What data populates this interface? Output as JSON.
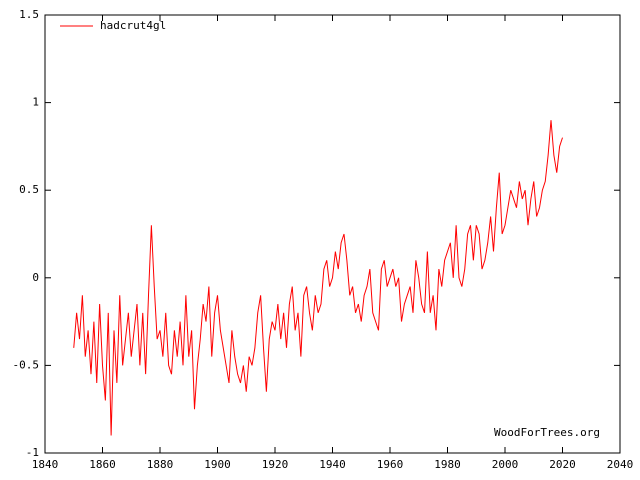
{
  "chart_data": {
    "type": "line",
    "annotation": "WoodForTrees.org",
    "x": [
      1850,
      1851,
      1852,
      1853,
      1854,
      1855,
      1856,
      1857,
      1858,
      1859,
      1860,
      1861,
      1862,
      1863,
      1864,
      1865,
      1866,
      1867,
      1868,
      1869,
      1870,
      1871,
      1872,
      1873,
      1874,
      1875,
      1876,
      1877,
      1878,
      1879,
      1880,
      1881,
      1882,
      1883,
      1884,
      1885,
      1886,
      1887,
      1888,
      1889,
      1890,
      1891,
      1892,
      1893,
      1894,
      1895,
      1896,
      1897,
      1898,
      1899,
      1900,
      1901,
      1902,
      1903,
      1904,
      1905,
      1906,
      1907,
      1908,
      1909,
      1910,
      1911,
      1912,
      1913,
      1914,
      1915,
      1916,
      1917,
      1918,
      1919,
      1920,
      1921,
      1922,
      1923,
      1924,
      1925,
      1926,
      1927,
      1928,
      1929,
      1930,
      1931,
      1932,
      1933,
      1934,
      1935,
      1936,
      1937,
      1938,
      1939,
      1940,
      1941,
      1942,
      1943,
      1944,
      1945,
      1946,
      1947,
      1948,
      1949,
      1950,
      1951,
      1952,
      1953,
      1954,
      1955,
      1956,
      1957,
      1958,
      1959,
      1960,
      1961,
      1962,
      1963,
      1964,
      1965,
      1966,
      1967,
      1968,
      1969,
      1970,
      1971,
      1972,
      1973,
      1974,
      1975,
      1976,
      1977,
      1978,
      1979,
      1980,
      1981,
      1982,
      1983,
      1984,
      1985,
      1986,
      1987,
      1988,
      1989,
      1990,
      1991,
      1992,
      1993,
      1994,
      1995,
      1996,
      1997,
      1998,
      1999,
      2000,
      2001,
      2002,
      2003,
      2004,
      2005,
      2006,
      2007,
      2008,
      2009,
      2010,
      2011,
      2012,
      2013,
      2014,
      2015,
      2016,
      2017,
      2018,
      2019,
      2020
    ],
    "series": [
      {
        "name": "hadcrut4gl",
        "color": "#ff0000",
        "values": [
          -0.4,
          -0.2,
          -0.35,
          -0.1,
          -0.45,
          -0.3,
          -0.55,
          -0.25,
          -0.6,
          -0.15,
          -0.5,
          -0.7,
          -0.2,
          -0.9,
          -0.3,
          -0.6,
          -0.1,
          -0.5,
          -0.35,
          -0.2,
          -0.45,
          -0.3,
          -0.15,
          -0.5,
          -0.2,
          -0.55,
          -0.1,
          0.3,
          -0.05,
          -0.35,
          -0.3,
          -0.45,
          -0.2,
          -0.5,
          -0.55,
          -0.3,
          -0.45,
          -0.25,
          -0.5,
          -0.1,
          -0.45,
          -0.3,
          -0.75,
          -0.5,
          -0.35,
          -0.15,
          -0.25,
          -0.05,
          -0.45,
          -0.2,
          -0.1,
          -0.3,
          -0.4,
          -0.5,
          -0.6,
          -0.3,
          -0.45,
          -0.55,
          -0.6,
          -0.5,
          -0.65,
          -0.45,
          -0.5,
          -0.4,
          -0.2,
          -0.1,
          -0.4,
          -0.65,
          -0.35,
          -0.25,
          -0.3,
          -0.15,
          -0.35,
          -0.2,
          -0.4,
          -0.15,
          -0.05,
          -0.3,
          -0.2,
          -0.45,
          -0.1,
          -0.05,
          -0.2,
          -0.3,
          -0.1,
          -0.2,
          -0.15,
          0.05,
          0.1,
          -0.05,
          0.0,
          0.15,
          0.05,
          0.2,
          0.25,
          0.1,
          -0.1,
          -0.05,
          -0.2,
          -0.15,
          -0.25,
          -0.1,
          -0.05,
          0.05,
          -0.2,
          -0.25,
          -0.3,
          0.05,
          0.1,
          -0.05,
          0.0,
          0.05,
          -0.05,
          0.0,
          -0.25,
          -0.15,
          -0.1,
          -0.05,
          -0.2,
          0.1,
          0.0,
          -0.15,
          -0.2,
          0.15,
          -0.2,
          -0.1,
          -0.3,
          0.05,
          -0.05,
          0.1,
          0.15,
          0.2,
          0.0,
          0.3,
          0.0,
          -0.05,
          0.05,
          0.25,
          0.3,
          0.1,
          0.3,
          0.25,
          0.05,
          0.1,
          0.2,
          0.35,
          0.15,
          0.4,
          0.6,
          0.25,
          0.3,
          0.4,
          0.5,
          0.45,
          0.4,
          0.55,
          0.45,
          0.5,
          0.3,
          0.45,
          0.55,
          0.35,
          0.4,
          0.5,
          0.55,
          0.7,
          0.9,
          0.7,
          0.6,
          0.75,
          0.8
        ]
      }
    ],
    "xlim": [
      1840,
      2040
    ],
    "xticks": [
      1840,
      1860,
      1880,
      1900,
      1920,
      1940,
      1960,
      1980,
      2000,
      2020,
      2040
    ],
    "ylim": [
      -1,
      1.5
    ],
    "yticks": [
      -1,
      -0.5,
      0,
      0.5,
      1,
      1.5
    ],
    "legend": "top-left"
  }
}
